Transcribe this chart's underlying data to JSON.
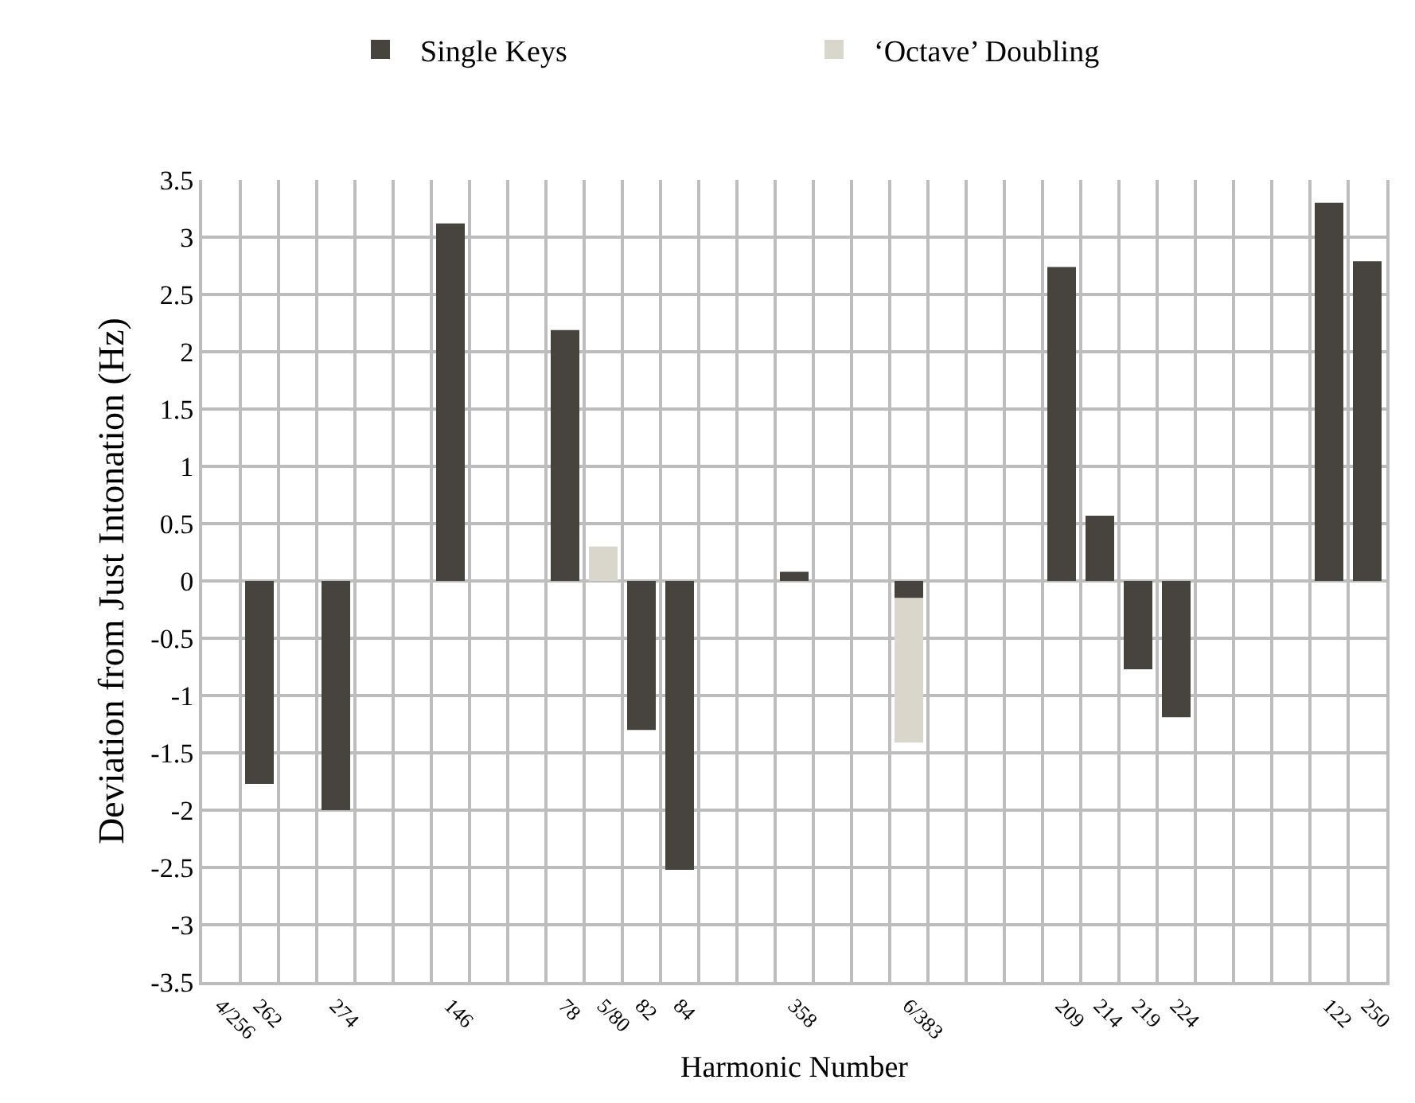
{
  "chart_data": {
    "type": "bar",
    "stacked": true,
    "xlabel": "Harmonic Number",
    "ylabel": "Deviation from Just Intonation (Hz)",
    "categories": [
      "4/256",
      "262",
      null,
      "274",
      null,
      null,
      "146",
      null,
      null,
      "78",
      "5/80",
      "82",
      "84",
      null,
      null,
      "358",
      null,
      null,
      "6/383",
      null,
      null,
      null,
      "209",
      "214",
      "219",
      "224",
      null,
      null,
      null,
      "122",
      "250"
    ],
    "series": [
      {
        "name": "Single Keys",
        "color": "#46443d",
        "values": [
          null,
          -1.77,
          null,
          -2.0,
          null,
          null,
          3.12,
          null,
          null,
          2.19,
          null,
          -1.3,
          -2.52,
          null,
          null,
          0.08,
          null,
          null,
          -0.15,
          null,
          null,
          null,
          2.74,
          0.57,
          -0.77,
          -1.19,
          null,
          null,
          null,
          3.3,
          2.79
        ]
      },
      {
        "name": "‘Octave’ Doubling",
        "color": "#d9d6cc",
        "values": [
          null,
          null,
          null,
          null,
          null,
          null,
          null,
          null,
          null,
          null,
          0.3,
          null,
          null,
          null,
          null,
          null,
          null,
          null,
          -1.26,
          null,
          null,
          null,
          null,
          null,
          null,
          null,
          null,
          null,
          null,
          null,
          null
        ]
      }
    ],
    "ylim": [
      -3.5,
      3.5
    ],
    "yticks": [
      -3.5,
      -3,
      -2.5,
      -2,
      -1.5,
      -1,
      -0.5,
      0,
      0.5,
      1,
      1.5,
      2,
      2.5,
      3,
      3.5
    ],
    "grid": true,
    "legend": "top"
  }
}
